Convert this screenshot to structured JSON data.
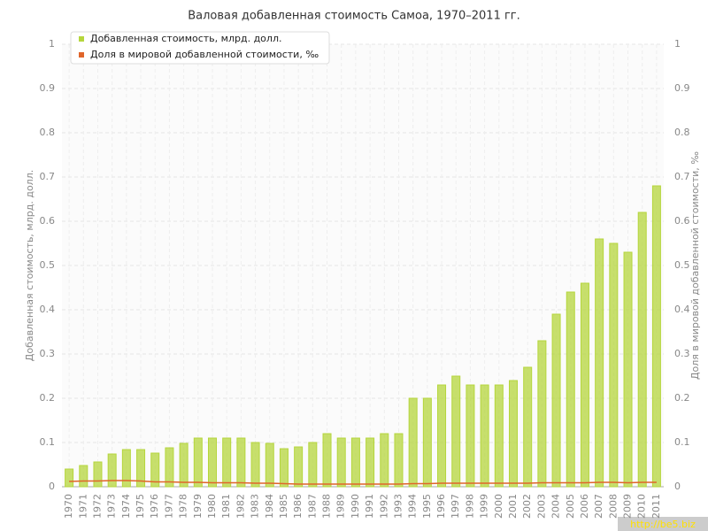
{
  "chart_data": {
    "type": "bar",
    "title": "Валовая добавленная стоимость Самоа, 1970–2011 гг.",
    "y_label": "Добавленная стоимость, млрд. долл.",
    "y2_label": "Доля в мировой добавленной стоимости, ‰",
    "categories": [
      "1970",
      "1971",
      "1972",
      "1973",
      "1974",
      "1975",
      "1976",
      "1977",
      "1978",
      "1979",
      "1980",
      "1981",
      "1982",
      "1983",
      "1984",
      "1985",
      "1986",
      "1987",
      "1988",
      "1989",
      "1990",
      "1991",
      "1992",
      "1993",
      "1994",
      "1995",
      "1996",
      "1997",
      "1998",
      "1999",
      "2000",
      "2001",
      "2002",
      "2003",
      "2004",
      "2005",
      "2006",
      "2007",
      "2008",
      "2009",
      "2010",
      "2011"
    ],
    "series": [
      {
        "name": "Добавленная стоимость, млрд. долл.",
        "color": "#b5d63c",
        "type": "bar",
        "values": [
          0.04,
          0.048,
          0.056,
          0.074,
          0.084,
          0.084,
          0.076,
          0.088,
          0.098,
          0.11,
          0.11,
          0.11,
          0.11,
          0.1,
          0.098,
          0.086,
          0.09,
          0.1,
          0.12,
          0.11,
          0.11,
          0.11,
          0.12,
          0.12,
          0.2,
          0.2,
          0.23,
          0.25,
          0.23,
          0.23,
          0.23,
          0.24,
          0.27,
          0.33,
          0.39,
          0.44,
          0.46,
          0.56,
          0.55,
          0.53,
          0.62,
          0.68
        ]
      },
      {
        "name": "Доля в мировой добавленной стоимости, ‰",
        "color": "#e0652a",
        "type": "line",
        "axis": "y2",
        "values": [
          0.012,
          0.013,
          0.013,
          0.014,
          0.014,
          0.013,
          0.011,
          0.011,
          0.01,
          0.01,
          0.009,
          0.009,
          0.009,
          0.008,
          0.008,
          0.007,
          0.006,
          0.006,
          0.006,
          0.006,
          0.006,
          0.006,
          0.006,
          0.006,
          0.007,
          0.007,
          0.008,
          0.008,
          0.008,
          0.008,
          0.008,
          0.008,
          0.008,
          0.009,
          0.009,
          0.009,
          0.009,
          0.01,
          0.01,
          0.009,
          0.01,
          0.01
        ]
      }
    ],
    "ylim": [
      0,
      1
    ],
    "yticks": [
      0,
      0.1,
      0.2,
      0.3,
      0.4,
      0.5,
      0.6,
      0.7,
      0.8,
      0.9,
      1
    ],
    "y2lim": [
      0,
      1
    ],
    "y2ticks": [
      0,
      0.1,
      0.2,
      0.3,
      0.4,
      0.5,
      0.6,
      0.7,
      0.8,
      0.9,
      1
    ],
    "grid": true,
    "legend": "top-left"
  },
  "watermark": "http://be5.biz"
}
